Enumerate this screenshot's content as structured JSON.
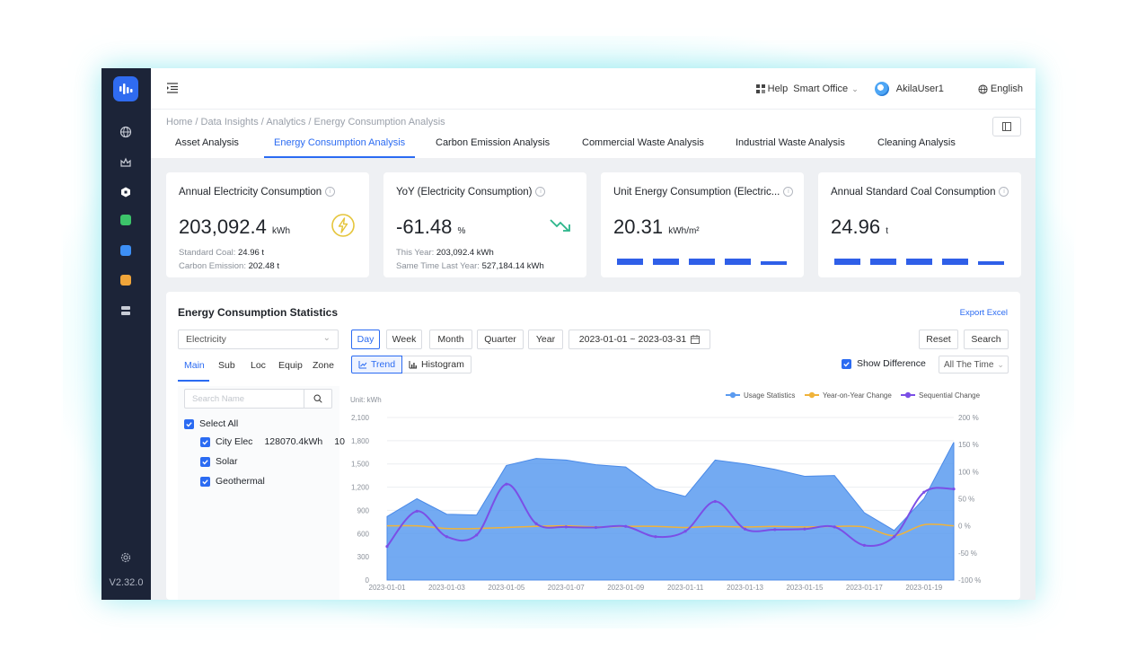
{
  "app": {
    "version": "V2.32.0",
    "sidebar_icons": [
      "globe-icon",
      "crown-icon",
      "cube-icon",
      "chat-icon",
      "bolt-icon",
      "note-icon",
      "server-icon"
    ],
    "settings_icon": "gear-icon"
  },
  "topbar": {
    "help": "Help",
    "workspace": "Smart Office",
    "user": "AkilaUser1",
    "language": "English"
  },
  "breadcrumb": [
    "Home",
    "Data Insights",
    "Analytics",
    "Energy Consumption Analysis"
  ],
  "tabs": [
    {
      "label": "Asset Analysis",
      "active": false
    },
    {
      "label": "Energy Consumption Analysis",
      "active": true
    },
    {
      "label": "Carbon Emission Analysis",
      "active": false
    },
    {
      "label": "Commercial Waste Analysis",
      "active": false
    },
    {
      "label": "Industrial Waste Analysis",
      "active": false
    },
    {
      "label": "Cleaning Analysis",
      "active": false
    }
  ],
  "cards": {
    "annual": {
      "title": "Annual Electricity Consumption",
      "value": "203,092.4",
      "unit": "kWh",
      "coal_label": "Standard Coal:",
      "coal_value": "24.96 t",
      "carbon_label": "Carbon Emission:",
      "carbon_value": "202.48 t"
    },
    "yoy": {
      "title": "YoY (Electricity Consumption)",
      "value": "-61.48",
      "unit": "%",
      "this_year_label": "This Year:",
      "this_year_value": "203,092.4 kWh",
      "last_year_label": "Same Time Last Year:",
      "last_year_value": "527,184.14 kWh"
    },
    "unit": {
      "title": "Unit Energy Consumption (Electric...",
      "value": "20.31",
      "unit": "kWh/m²"
    },
    "coal": {
      "title": "Annual Standard Coal Consumption",
      "value": "24.96",
      "unit": "t"
    }
  },
  "stats": {
    "title": "Energy Consumption Statistics",
    "export": "Export Excel",
    "energy_type": "Electricity",
    "periods": [
      "Day",
      "Week",
      "Month",
      "Quarter",
      "Year"
    ],
    "active_period": "Day",
    "date_range": "2023-01-01 ~ 2023-03-31",
    "reset": "Reset",
    "search": "Search",
    "sub_tabs": [
      "Main",
      "Sub",
      "Loc",
      "Equip",
      "Zone"
    ],
    "views": [
      "Trend",
      "Histogram"
    ],
    "show_difference": "Show Difference",
    "time_option": "All The Time",
    "search_placeholder": "Search Name",
    "tree": {
      "select_all": "Select All",
      "items": [
        {
          "name": "City Elec",
          "value": "128070.4kWh",
          "extra": "10"
        },
        {
          "name": "Solar"
        },
        {
          "name": "Geothermal"
        }
      ]
    }
  },
  "chart_data": {
    "type": "area",
    "unit_label": "Unit: kWh",
    "x": [
      "2023-01-01",
      "2023-01-02",
      "2023-01-03",
      "2023-01-04",
      "2023-01-05",
      "2023-01-06",
      "2023-01-07",
      "2023-01-08",
      "2023-01-09",
      "2023-01-10",
      "2023-01-11",
      "2023-01-12",
      "2023-01-13",
      "2023-01-14",
      "2023-01-15",
      "2023-01-16",
      "2023-01-17",
      "2023-01-18",
      "2023-01-19",
      "2023-01-20"
    ],
    "x_tick_labels": [
      "2023-01-01",
      "2023-01-03",
      "2023-01-05",
      "2023-01-07",
      "2023-01-09",
      "2023-01-11",
      "2023-01-13",
      "2023-01-15",
      "2023-01-17",
      "2023-01-19"
    ],
    "y_left": {
      "ticks": [
        0,
        300,
        600,
        900,
        1200,
        1500,
        1800,
        2100
      ],
      "labels": [
        "0",
        "300",
        "600",
        "900",
        "1,200",
        "1,500",
        "1,800",
        "2,100"
      ],
      "range": [
        0,
        2100
      ]
    },
    "y_right": {
      "ticks": [
        -100,
        -50,
        0,
        50,
        100,
        150,
        200
      ],
      "labels": [
        "-100 %",
        "-50 %",
        "0 %",
        "50 %",
        "100 %",
        "150 %",
        "200 %"
      ],
      "range": [
        -100,
        200
      ]
    },
    "legend": [
      "Usage Statistics",
      "Year-on-Year Change",
      "Sequential Change"
    ],
    "colors": {
      "usage": "#5b9bf0",
      "yoy": "#f0b33a",
      "sequential": "#7b4fe6"
    },
    "series": [
      {
        "name": "Usage Statistics",
        "axis": "left",
        "values": [
          820,
          1050,
          850,
          840,
          1480,
          1570,
          1550,
          1490,
          1460,
          1180,
          1080,
          1550,
          1500,
          1430,
          1340,
          1350,
          870,
          640,
          1050,
          1780
        ]
      },
      {
        "name": "Year-on-Year Change",
        "axis": "right",
        "values": [
          0,
          0,
          -5,
          -5,
          -3,
          -1,
          0,
          -2,
          -1,
          -1,
          -3,
          -1,
          -2,
          -1,
          -2,
          -1,
          -2,
          -18,
          2,
          0
        ]
      },
      {
        "name": "Sequential Change",
        "axis": "right",
        "values": [
          -38,
          27,
          -20,
          -17,
          77,
          4,
          -2,
          -3,
          -1,
          -20,
          -10,
          45,
          -6,
          -7,
          -6,
          -2,
          -36,
          -20,
          62,
          68
        ]
      }
    ]
  }
}
